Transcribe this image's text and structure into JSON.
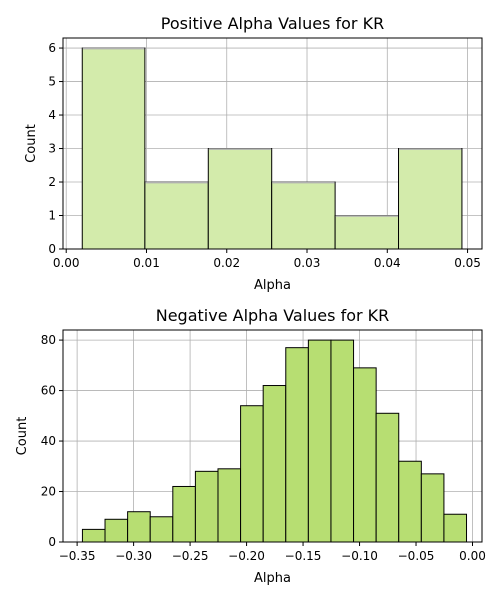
{
  "chart_data": [
    {
      "type": "bar",
      "title": "Positive Alpha Values for KR",
      "xlabel": "Alpha",
      "ylabel": "Count",
      "xlim": [
        -0.0004,
        0.0518
      ],
      "ylim": [
        0,
        6.3
      ],
      "grid": true,
      "bins": [
        {
          "x0": 0.002,
          "x1": 0.0098,
          "count": 6
        },
        {
          "x0": 0.0098,
          "x1": 0.0177,
          "count": 2
        },
        {
          "x0": 0.0177,
          "x1": 0.0256,
          "count": 3
        },
        {
          "x0": 0.0256,
          "x1": 0.0335,
          "count": 2
        },
        {
          "x0": 0.0335,
          "x1": 0.0414,
          "count": 1
        },
        {
          "x0": 0.0414,
          "x1": 0.0493,
          "count": 3
        }
      ],
      "xticks": [
        "0.00",
        "0.01",
        "0.02",
        "0.03",
        "0.04",
        "0.05"
      ],
      "xtick_values": [
        0.0,
        0.01,
        0.02,
        0.03,
        0.04,
        0.05
      ],
      "yticks": [
        "0",
        "1",
        "2",
        "3",
        "4",
        "5",
        "6"
      ],
      "ytick_values": [
        0,
        1,
        2,
        3,
        4,
        5,
        6
      ],
      "colors": {
        "fill": "#d3ebab",
        "edge": "#000000",
        "top_edge": "#b0b0b0"
      }
    },
    {
      "type": "bar",
      "title": "Negative Alpha Values for KR",
      "xlabel": "Alpha",
      "ylabel": "Count",
      "xlim": [
        -0.3625,
        0.0084
      ],
      "ylim": [
        0,
        84
      ],
      "grid": true,
      "bins": [
        {
          "x0": -0.3453,
          "x1": -0.3253,
          "count": 5
        },
        {
          "x0": -0.3253,
          "x1": -0.3053,
          "count": 9
        },
        {
          "x0": -0.3053,
          "x1": -0.2853,
          "count": 12
        },
        {
          "x0": -0.2853,
          "x1": -0.2653,
          "count": 10
        },
        {
          "x0": -0.2653,
          "x1": -0.2453,
          "count": 22
        },
        {
          "x0": -0.2453,
          "x1": -0.2253,
          "count": 28
        },
        {
          "x0": -0.2253,
          "x1": -0.2053,
          "count": 29
        },
        {
          "x0": -0.2053,
          "x1": -0.1853,
          "count": 54
        },
        {
          "x0": -0.1853,
          "x1": -0.1653,
          "count": 62
        },
        {
          "x0": -0.1653,
          "x1": -0.1453,
          "count": 77
        },
        {
          "x0": -0.1453,
          "x1": -0.1253,
          "count": 80
        },
        {
          "x0": -0.1253,
          "x1": -0.1053,
          "count": 80
        },
        {
          "x0": -0.1053,
          "x1": -0.0853,
          "count": 69
        },
        {
          "x0": -0.0853,
          "x1": -0.0653,
          "count": 51
        },
        {
          "x0": -0.0653,
          "x1": -0.0453,
          "count": 32
        },
        {
          "x0": -0.0453,
          "x1": -0.0253,
          "count": 27
        },
        {
          "x0": -0.0253,
          "x1": -0.0053,
          "count": 11
        }
      ],
      "xticks": [
        "−0.35",
        "−0.30",
        "−0.25",
        "−0.20",
        "−0.15",
        "−0.10",
        "−0.05",
        "0.00"
      ],
      "xtick_values": [
        -0.35,
        -0.3,
        -0.25,
        -0.2,
        -0.15,
        -0.1,
        -0.05,
        0.0
      ],
      "yticks": [
        "0",
        "20",
        "40",
        "60",
        "80"
      ],
      "ytick_values": [
        0,
        20,
        40,
        60,
        80
      ],
      "colors": {
        "fill": "#b7de72",
        "edge": "#000000"
      }
    }
  ]
}
